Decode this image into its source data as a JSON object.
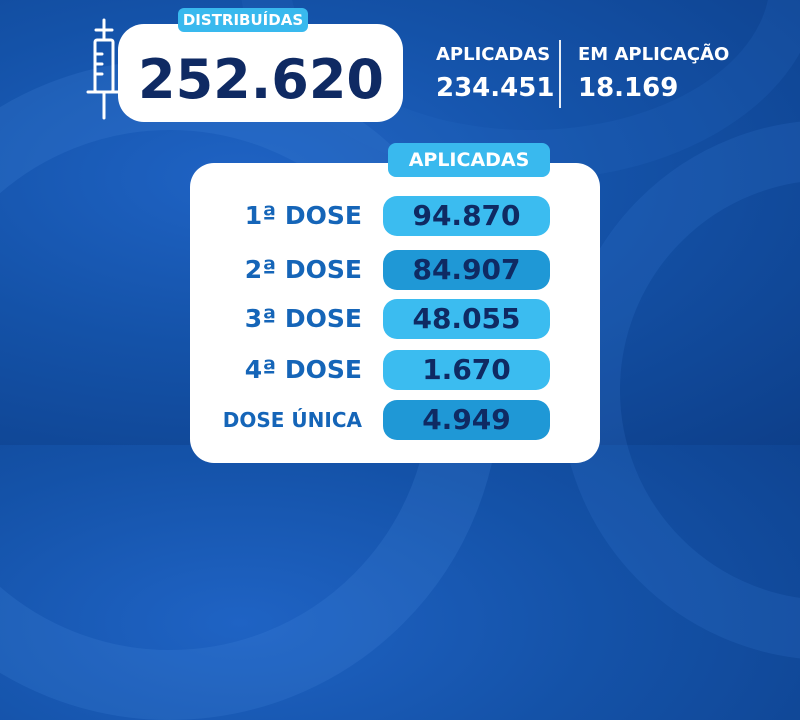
{
  "distributed": {
    "label": "DISTRIBUÍDAS",
    "value": "252.620"
  },
  "stats": [
    {
      "label": "APLICADAS",
      "value": "234.451"
    },
    {
      "label": "EM APLICAÇÃO",
      "value": "18.169"
    }
  ],
  "applied_panel": {
    "header": "APLICADAS",
    "rows": [
      {
        "label": "1ª DOSE",
        "value": "94.870"
      },
      {
        "label": "2ª DOSE",
        "value": "84.907"
      },
      {
        "label": "3ª DOSE",
        "value": "48.055"
      },
      {
        "label": "4ª DOSE",
        "value": "1.670"
      },
      {
        "label": "DOSE ÚNICA",
        "value": "4.949"
      }
    ]
  },
  "colors": {
    "background": "#1452a8",
    "accent": "#39b9ee",
    "pill_dark": "#1f98d6",
    "text_dark": "#0f2a63",
    "label_blue": "#1565b8"
  },
  "icons": {
    "syringe": "syringe-icon"
  }
}
